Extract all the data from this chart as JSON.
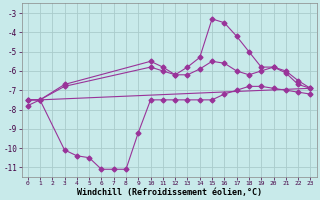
{
  "title": "",
  "xlabel": "Windchill (Refroidissement éolien,°C)",
  "ylabel": "",
  "bg_color": "#c8eaea",
  "grid_color": "#aacccc",
  "line_color": "#993399",
  "xlim": [
    -0.5,
    23.5
  ],
  "ylim": [
    -11.5,
    -2.5
  ],
  "yticks": [
    -11,
    -10,
    -9,
    -8,
    -7,
    -6,
    -5,
    -4,
    -3
  ],
  "xticks": [
    0,
    1,
    2,
    3,
    4,
    5,
    6,
    7,
    8,
    9,
    10,
    11,
    12,
    13,
    14,
    15,
    16,
    17,
    18,
    19,
    20,
    21,
    22,
    23
  ],
  "series": [
    {
      "x": [
        0,
        1,
        3,
        10,
        11,
        12,
        13,
        14,
        15,
        16,
        17,
        18,
        19,
        20,
        21,
        22,
        23
      ],
      "y": [
        -7.5,
        -7.5,
        -6.7,
        -5.5,
        -5.8,
        -6.2,
        -5.8,
        -5.3,
        -3.3,
        -3.5,
        -4.2,
        -5.0,
        -5.8,
        -5.8,
        -6.1,
        -6.7,
        -6.9
      ]
    },
    {
      "x": [
        0,
        1,
        3,
        10,
        11,
        12,
        13,
        14,
        15,
        16,
        17,
        18,
        19,
        20,
        21,
        22,
        23
      ],
      "y": [
        -7.5,
        -7.5,
        -6.8,
        -5.8,
        -6.0,
        -6.2,
        -6.2,
        -5.9,
        -5.5,
        -5.6,
        -6.0,
        -6.2,
        -6.0,
        -5.8,
        -6.0,
        -6.5,
        -6.9
      ]
    },
    {
      "x": [
        0,
        1,
        23
      ],
      "y": [
        -7.5,
        -7.5,
        -6.9
      ]
    },
    {
      "x": [
        0,
        1,
        3,
        4,
        5,
        6,
        7,
        8,
        9,
        10,
        11,
        12,
        13,
        14,
        15,
        16,
        17,
        18,
        19,
        20,
        21,
        22,
        23
      ],
      "y": [
        -7.8,
        -7.5,
        -10.1,
        -10.4,
        -10.5,
        -11.1,
        -11.1,
        -11.1,
        -9.2,
        -7.5,
        -7.5,
        -7.5,
        -7.5,
        -7.5,
        -7.5,
        -7.2,
        -7.0,
        -6.8,
        -6.8,
        -6.9,
        -7.0,
        -7.1,
        -7.2
      ]
    }
  ]
}
